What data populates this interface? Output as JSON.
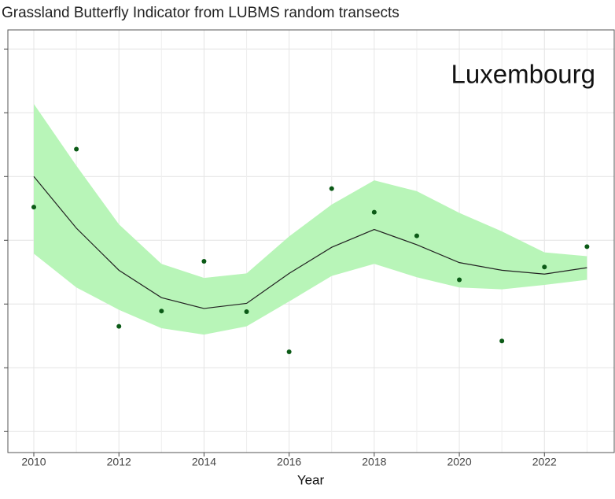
{
  "chart_data": {
    "type": "line",
    "title": "Grassland Butterfly Indicator from LUBMS random transects",
    "annotation": "Luxembourg",
    "xlabel": "Year",
    "x": [
      2010,
      2011,
      2012,
      2013,
      2014,
      2015,
      2016,
      2017,
      2018,
      2019,
      2020,
      2021,
      2022,
      2023
    ],
    "points": {
      "color": "#0b5a16",
      "values": [
        3.52,
        4.43,
        1.65,
        1.89,
        2.67,
        1.88,
        1.25,
        3.81,
        3.44,
        3.07,
        2.38,
        1.42,
        2.58,
        2.9
      ]
    },
    "trend": {
      "color": "#222222",
      "band_color": "#b8f5b8",
      "values": [
        4.0,
        3.19,
        2.53,
        2.1,
        1.93,
        2.01,
        2.48,
        2.89,
        3.17,
        2.93,
        2.65,
        2.53,
        2.47,
        2.57
      ],
      "upper": [
        5.14,
        4.17,
        3.25,
        2.63,
        2.41,
        2.48,
        3.06,
        3.56,
        3.94,
        3.77,
        3.43,
        3.14,
        2.81,
        2.75
      ],
      "lower": [
        2.79,
        2.26,
        1.91,
        1.62,
        1.52,
        1.65,
        2.04,
        2.44,
        2.63,
        2.42,
        2.26,
        2.23,
        2.3,
        2.38
      ]
    },
    "xlim": [
      2009.39,
      2023.64
    ],
    "xticks": [
      2010,
      2012,
      2014,
      2016,
      2018,
      2020,
      2022
    ],
    "xminor": [
      2011,
      2013,
      2015,
      2017,
      2019,
      2021,
      2023
    ],
    "ylim": [
      -0.33,
      6.3
    ],
    "yticks": [
      0,
      1,
      2,
      3,
      4,
      5,
      6
    ],
    "grid": true
  }
}
